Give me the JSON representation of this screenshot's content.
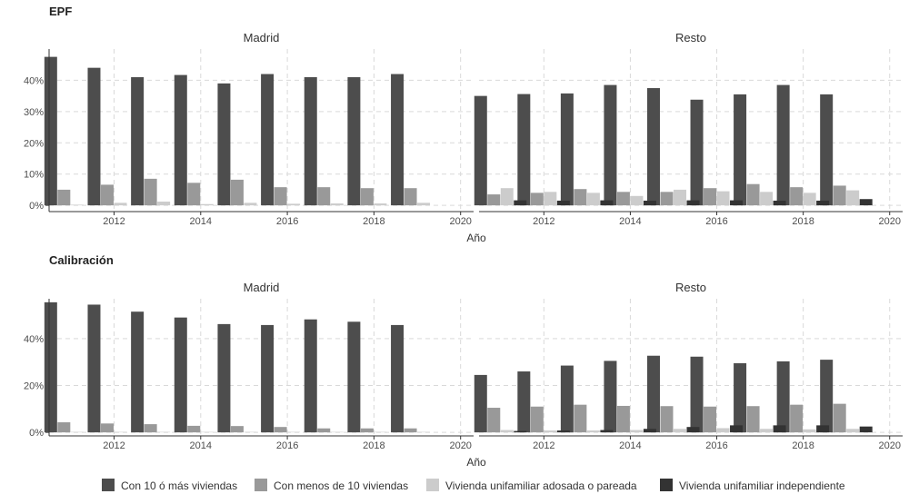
{
  "chart_data": {
    "type": "bar",
    "legend_position": "bottom",
    "grid": true,
    "series_names": [
      "Con 10 ó más viviendas",
      "Con menos de 10 viviendas",
      "Vivienda unifamiliar adosada o pareada",
      "Vivienda unifamiliar independiente"
    ],
    "colors": [
      "#4d4d4d",
      "#999999",
      "#cccccc",
      "#333333"
    ],
    "x": [
      2011,
      2012,
      2013,
      2014,
      2015,
      2016,
      2017,
      2018,
      2019
    ],
    "x_ticks": [
      2012,
      2014,
      2016,
      2018,
      2020
    ],
    "xlim": [
      2010.5,
      2020.3
    ],
    "xlabel": "Año",
    "sections": [
      {
        "title": "EPF",
        "ylim": [
          -0.02,
          0.5
        ],
        "y_ticks": [
          0,
          0.1,
          0.2,
          0.3,
          0.4
        ],
        "y_tick_labels": [
          "0%",
          "10%",
          "20%",
          "30%",
          "40%"
        ],
        "facets": [
          {
            "title": "Madrid",
            "series": [
              {
                "name": "Con 10 ó más viviendas",
                "values": [
                  0.475,
                  0.44,
                  0.41,
                  0.417,
                  0.39,
                  0.42,
                  0.41,
                  0.41,
                  0.42
                ]
              },
              {
                "name": "Con menos de 10 viviendas",
                "values": [
                  0.05,
                  0.066,
                  0.085,
                  0.072,
                  0.082,
                  0.058,
                  0.058,
                  0.055,
                  0.055
                ]
              },
              {
                "name": "Vivienda unifamiliar adosada o pareada",
                "values": [
                  0.002,
                  0.008,
                  0.012,
                  0.004,
                  0.008,
                  0.005,
                  0.006,
                  0.006,
                  0.008
                ]
              },
              {
                "name": "Vivienda unifamiliar independiente",
                "values": [
                  0,
                  0,
                  0,
                  0,
                  0,
                  0,
                  0,
                  0,
                  0
                ]
              }
            ]
          },
          {
            "title": "Resto",
            "series": [
              {
                "name": "Con 10 ó más viviendas",
                "values": [
                  0.35,
                  0.356,
                  0.358,
                  0.385,
                  0.375,
                  0.338,
                  0.355,
                  0.385,
                  0.355
                ]
              },
              {
                "name": "Con menos de 10 viviendas",
                "values": [
                  0.035,
                  0.04,
                  0.052,
                  0.043,
                  0.043,
                  0.055,
                  0.068,
                  0.058,
                  0.063
                ]
              },
              {
                "name": "Vivienda unifamiliar adosada o pareada",
                "values": [
                  0.055,
                  0.043,
                  0.04,
                  0.03,
                  0.05,
                  0.045,
                  0.043,
                  0.04,
                  0.048
                ]
              },
              {
                "name": "Vivienda unifamiliar independiente",
                "values": [
                  0.016,
                  0.015,
                  0.016,
                  0.015,
                  0.016,
                  0.016,
                  0.015,
                  0.015,
                  0.02
                ]
              }
            ]
          }
        ]
      },
      {
        "title": "Calibración",
        "ylim": [
          -0.015,
          0.57
        ],
        "y_ticks": [
          0,
          0.2,
          0.4
        ],
        "y_tick_labels": [
          "0%",
          "20%",
          "40%"
        ],
        "facets": [
          {
            "title": "Madrid",
            "series": [
              {
                "name": "Con 10 ó más viviendas",
                "values": [
                  0.555,
                  0.545,
                  0.515,
                  0.49,
                  0.462,
                  0.458,
                  0.482,
                  0.472,
                  0.458
                ]
              },
              {
                "name": "Con menos de 10 viviendas",
                "values": [
                  0.043,
                  0.038,
                  0.035,
                  0.028,
                  0.027,
                  0.023,
                  0.017,
                  0.017,
                  0.017
                ]
              },
              {
                "name": "Vivienda unifamiliar adosada o pareada",
                "values": [
                  0.002,
                  0.002,
                  0.002,
                  0.002,
                  0.002,
                  0.002,
                  0.002,
                  0.002,
                  0.002
                ]
              },
              {
                "name": "Vivienda unifamiliar independiente",
                "values": [
                  0,
                  0,
                  0,
                  0,
                  0,
                  0,
                  0,
                  0,
                  0
                ]
              }
            ]
          },
          {
            "title": "Resto",
            "series": [
              {
                "name": "Con 10 ó más viviendas",
                "values": [
                  0.245,
                  0.26,
                  0.285,
                  0.305,
                  0.327,
                  0.323,
                  0.295,
                  0.303,
                  0.31
                ]
              },
              {
                "name": "Con menos de 10 viviendas",
                "values": [
                  0.105,
                  0.11,
                  0.118,
                  0.113,
                  0.112,
                  0.11,
                  0.112,
                  0.118,
                  0.122
                ]
              },
              {
                "name": "Vivienda unifamiliar adosada o pareada",
                "values": [
                  0.01,
                  0.008,
                  0.008,
                  0.01,
                  0.015,
                  0.018,
                  0.015,
                  0.013,
                  0.015
                ]
              },
              {
                "name": "Vivienda unifamiliar independiente",
                "values": [
                  0.006,
                  0.008,
                  0.01,
                  0.015,
                  0.023,
                  0.03,
                  0.03,
                  0.03,
                  0.025
                ]
              }
            ]
          }
        ]
      }
    ]
  }
}
